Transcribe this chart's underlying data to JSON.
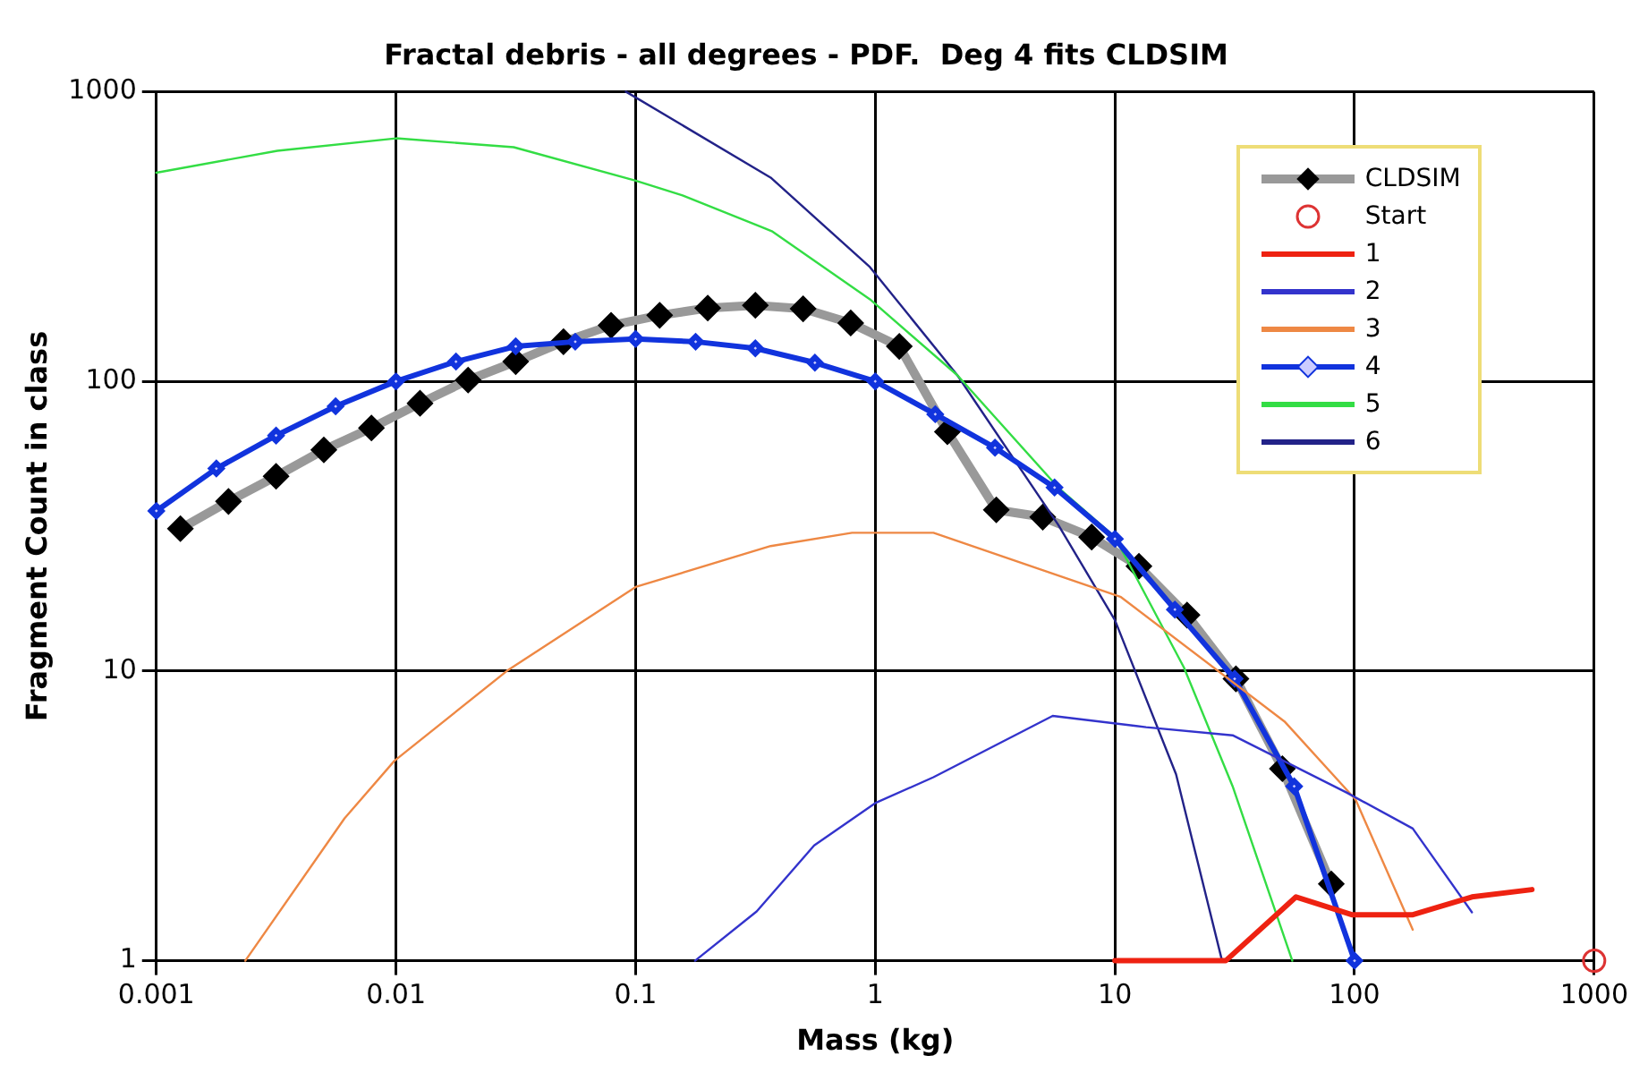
{
  "chart_data": {
    "type": "line",
    "title": "Fractal debris - all degrees - PDF.  Deg 4 fits CLDSIM",
    "xlabel": "Mass (kg)",
    "ylabel": "Fragment Count in class",
    "log": "xy",
    "grid": true,
    "legend": "top right",
    "line_style": "solid",
    "xlim": [
      0.001,
      1000
    ],
    "xticks": [
      0.001,
      0.01,
      0.1,
      1,
      10,
      100,
      1000
    ],
    "ylim": [
      1,
      1000
    ],
    "yticks": [
      1,
      10,
      100,
      1000
    ],
    "series": [
      {
        "name": "CLDSIM",
        "color": "#999999",
        "marker": "diamond",
        "x": [
          0.00126,
          0.002,
          0.00316,
          0.005,
          0.0079,
          0.0126,
          0.02,
          0.0316,
          0.05,
          0.079,
          0.126,
          0.2,
          0.316,
          0.5,
          0.79,
          1.26,
          2,
          3.2,
          5,
          8,
          12.6,
          20,
          32,
          50,
          80
        ],
        "values": [
          31,
          38.5,
          47,
          58,
          69,
          84,
          101,
          117,
          137,
          156,
          169,
          179,
          183,
          178,
          159,
          132,
          67,
          36,
          34,
          29,
          23,
          15.6,
          9.4,
          4.6,
          1.84
        ]
      },
      {
        "name": "Start",
        "type": "scatter",
        "color": "#dd3333",
        "marker": "circle",
        "x": [
          1000
        ],
        "values": [
          1
        ]
      },
      {
        "name": "1",
        "color": "#ee2211",
        "marker": "none",
        "x": [
          10,
          29,
          57,
          98,
          174,
          309,
          550
        ],
        "values": [
          1,
          1,
          1.66,
          1.44,
          1.44,
          1.66,
          1.76
        ]
      },
      {
        "name": "2",
        "color": "#3333cc",
        "marker": "none",
        "x": [
          0.177,
          0.32,
          0.556,
          1,
          1.75,
          5.5,
          13.5,
          31,
          93,
          175,
          309
        ],
        "values": [
          1,
          1.48,
          2.5,
          3.5,
          4.3,
          7,
          6.4,
          6,
          3.8,
          2.86,
          1.47
        ]
      },
      {
        "name": "3",
        "color": "#ee8844",
        "marker": "none",
        "x": [
          0.00235,
          0.0061,
          0.00986,
          0.029,
          0.1,
          0.366,
          0.8,
          1.75,
          10.6,
          51,
          101,
          175
        ],
        "values": [
          1,
          3.1,
          4.9,
          10,
          19.5,
          27,
          30,
          30,
          18,
          6.7,
          3.6,
          1.28
        ]
      },
      {
        "name": "4",
        "color": "#1133dd",
        "marker": "diamond",
        "x": [
          0.001,
          0.00178,
          0.00316,
          0.0056,
          0.01,
          0.0178,
          0.0316,
          0.056,
          0.1,
          0.178,
          0.316,
          0.56,
          1,
          1.78,
          3.16,
          5.6,
          10,
          17.8,
          31.6,
          56,
          100
        ],
        "values": [
          35.7,
          50,
          65,
          82,
          100,
          117,
          132,
          137,
          140,
          137,
          130,
          116,
          100,
          77,
          59,
          43,
          28.6,
          16.3,
          9.4,
          4,
          1
        ]
      },
      {
        "name": "5",
        "color": "#33dd44",
        "marker": "none",
        "x": [
          0.001,
          0.0032,
          0.01,
          0.031,
          0.1,
          0.157,
          0.37,
          0.95,
          2.2,
          5.8,
          10,
          19.4,
          31,
          55
        ],
        "values": [
          525,
          625,
          690,
          643,
          493,
          438,
          330,
          192,
          105,
          43,
          29,
          10.3,
          4,
          1
        ]
      },
      {
        "name": "6",
        "color": "#222288",
        "marker": "none",
        "x": [
          0.091,
          0.366,
          0.95,
          2.2,
          5.8,
          10,
          18,
          28
        ],
        "values": [
          1000,
          505,
          248,
          105,
          32,
          15,
          4.4,
          1
        ]
      }
    ]
  }
}
